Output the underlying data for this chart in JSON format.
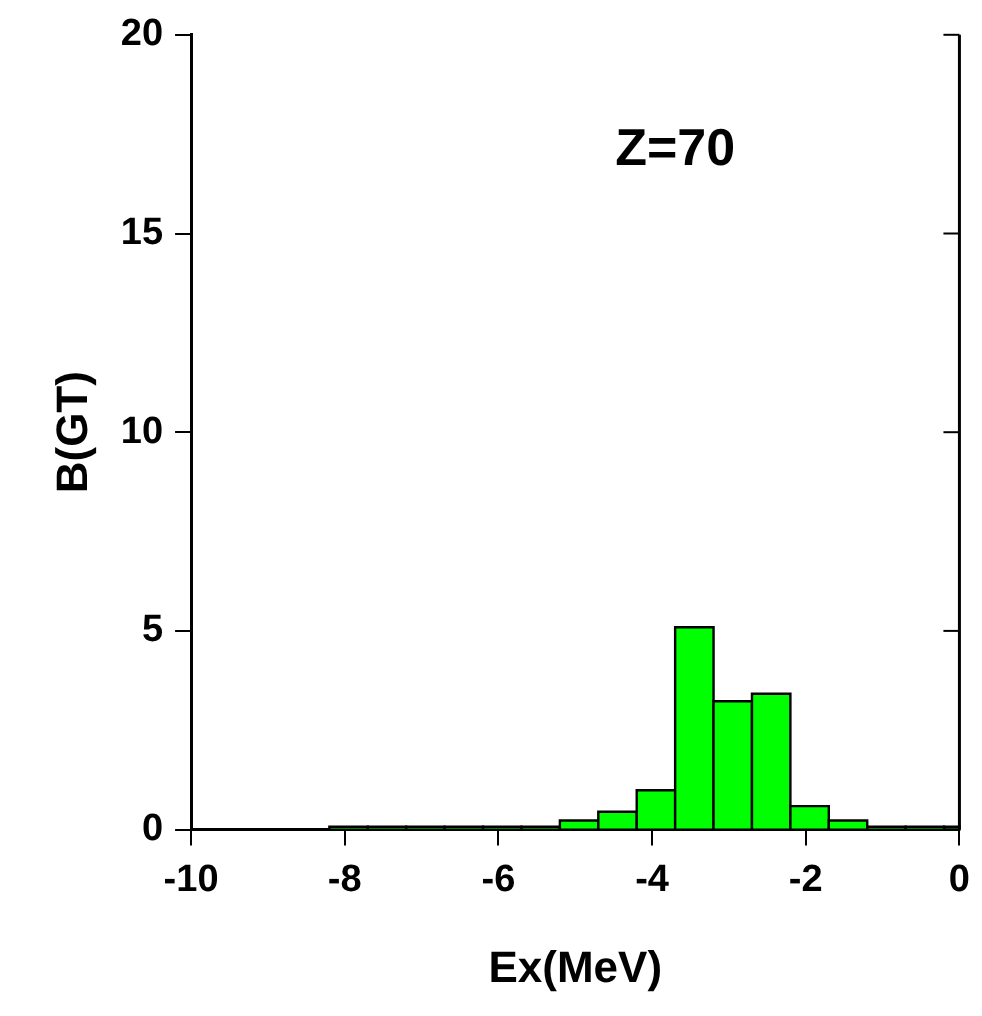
{
  "chart_data": {
    "type": "histogram",
    "xlabel": "Ex(MeV)",
    "ylabel": "B(GT)",
    "annotations": [
      "Z=70"
    ],
    "bins": [
      -8.2,
      -7.7,
      -7.2,
      -6.7,
      -6.2,
      -5.7,
      -5.2,
      -4.7,
      -4.2,
      -3.7,
      -3.2,
      -2.7,
      -2.2,
      -1.7,
      -1.2,
      -0.7,
      -0.2,
      0
    ],
    "values": [
      0.07,
      0.07,
      0.07,
      0.07,
      0.07,
      0.07,
      0.23,
      0.45,
      0.99,
      5.09,
      3.23,
      3.42,
      0.59,
      0.23,
      0.07,
      0.07,
      0.07
    ],
    "color": "#00ff00",
    "xlim": [
      -10,
      0
    ],
    "xticks": [
      -10,
      -8,
      -6,
      -4,
      -2,
      0
    ],
    "ylim": [
      0,
      20
    ],
    "yticks": [
      0,
      5,
      10,
      15,
      20
    ],
    "grid": false,
    "legend": false
  }
}
